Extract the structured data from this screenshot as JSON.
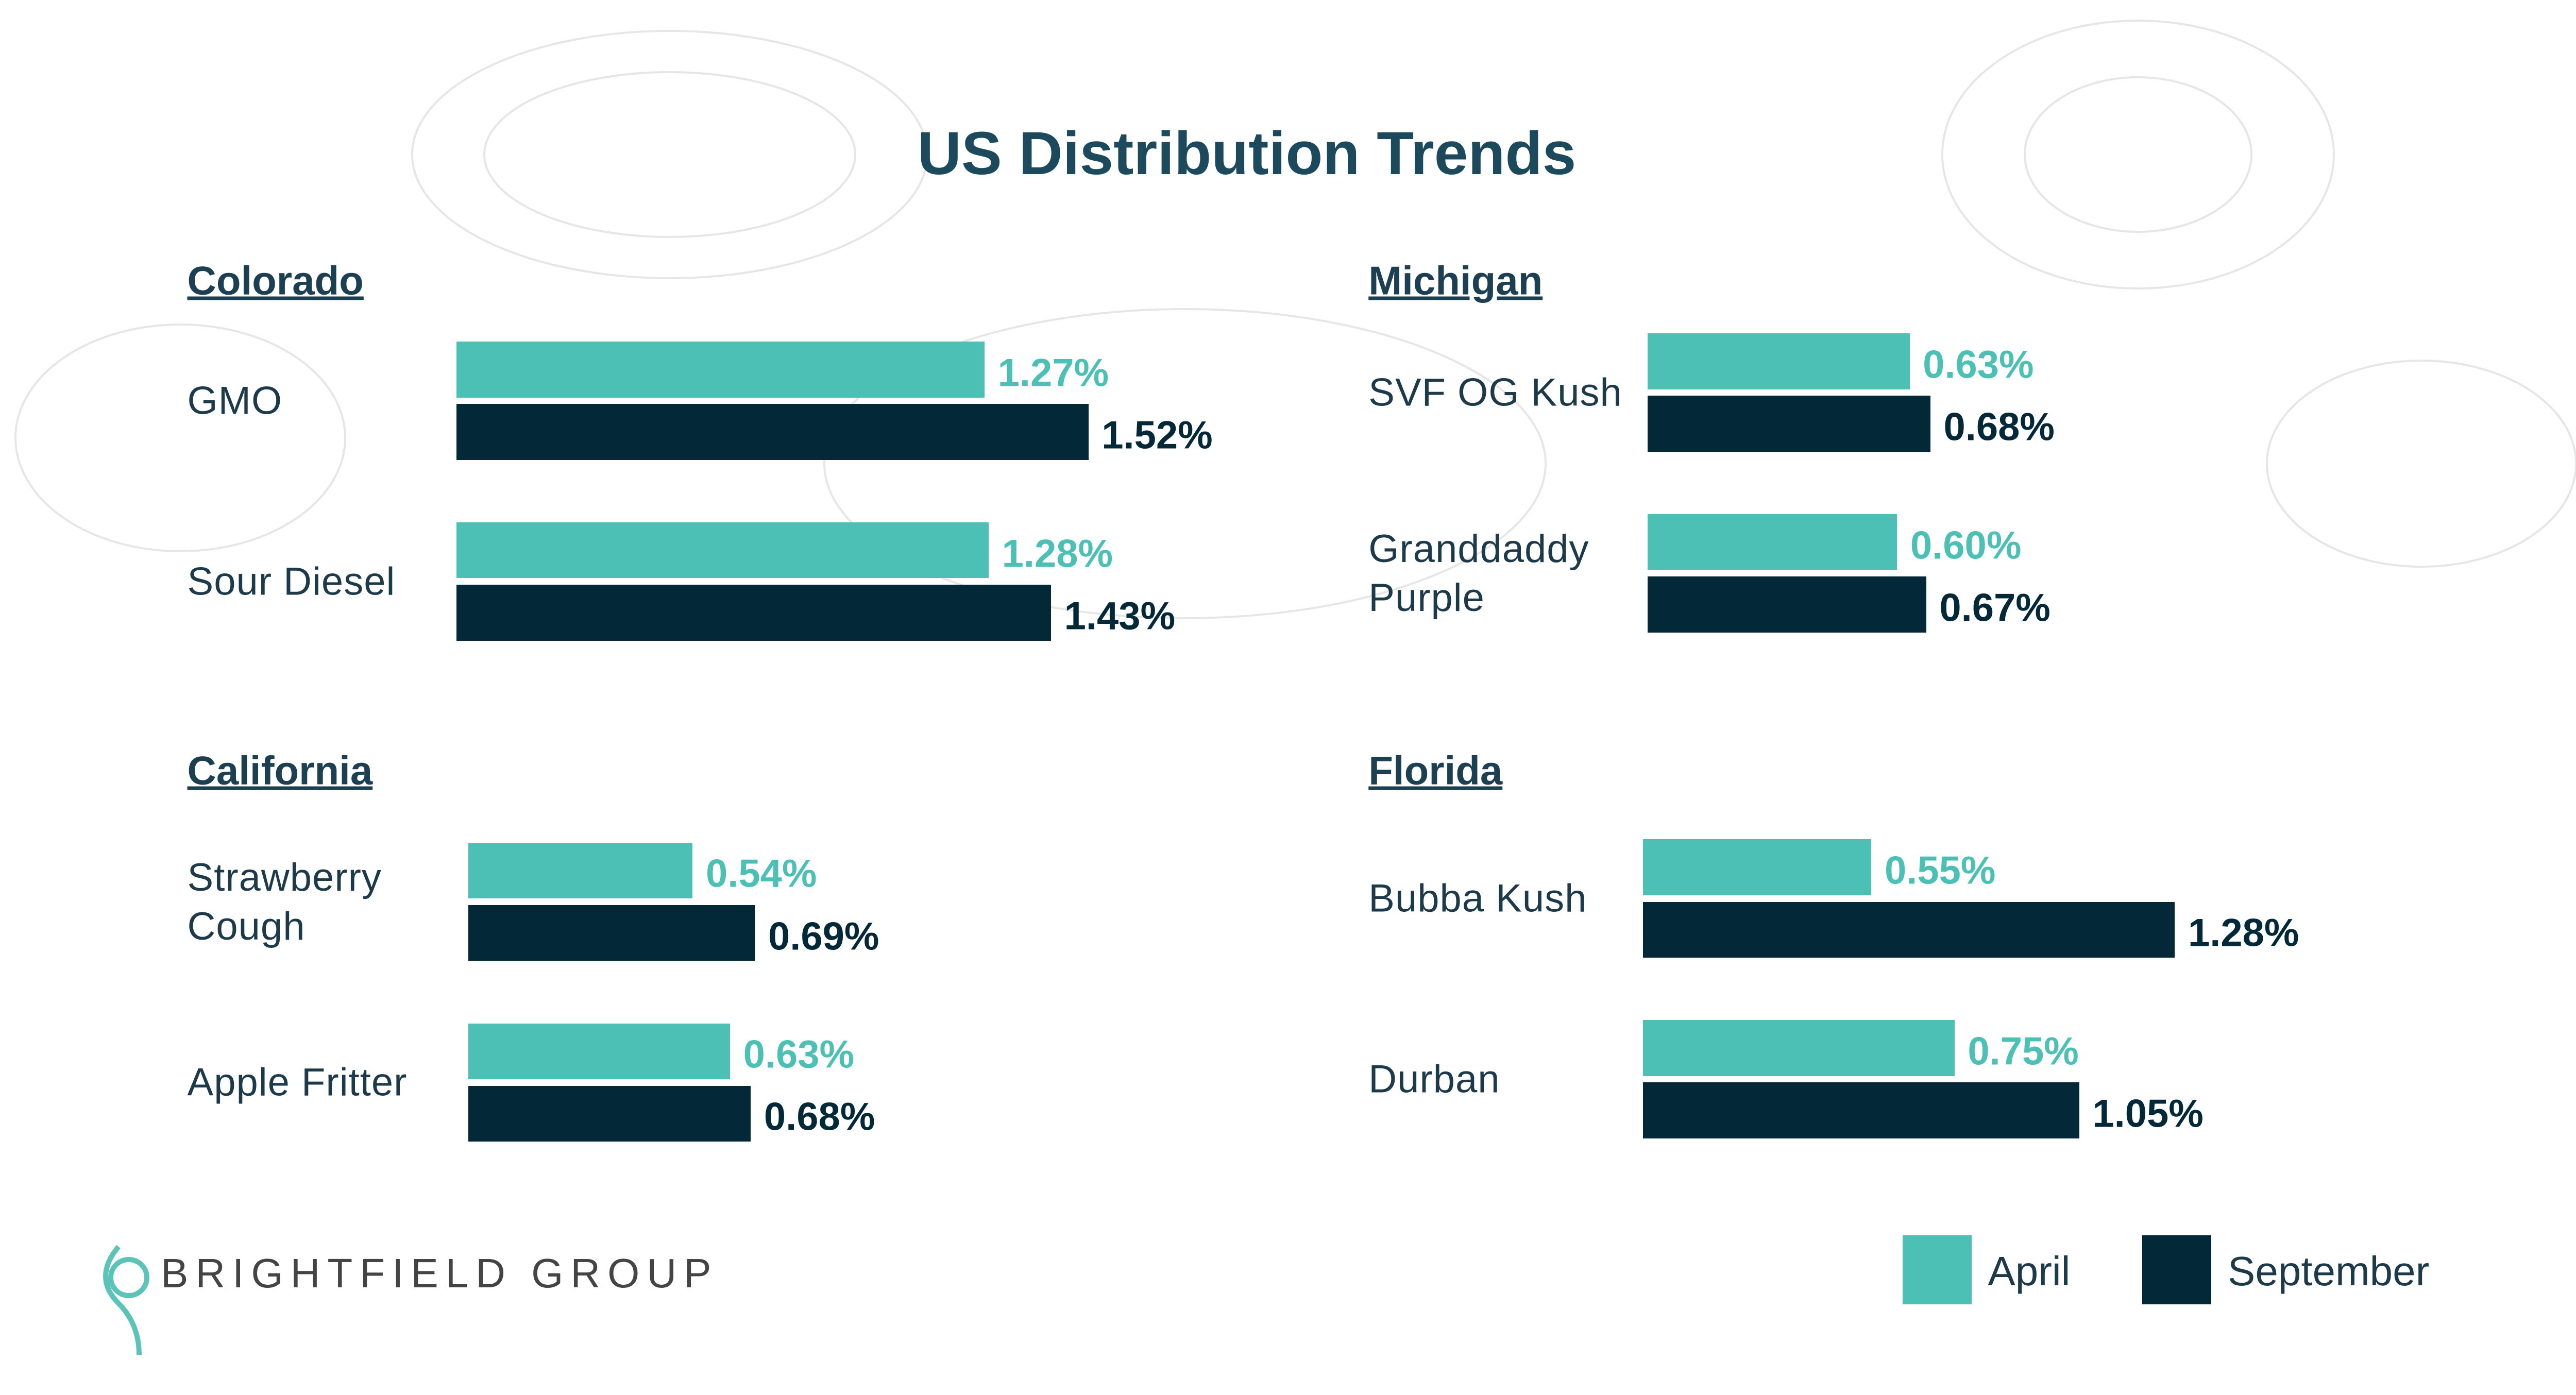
{
  "title": "US Distribution Trends",
  "logo": "BRIGHTFIELD GROUP",
  "chart_data": [
    {
      "type": "bar",
      "orientation": "horizontal",
      "title": "Colorado",
      "categories": [
        "GMO",
        "Sour Diesel"
      ],
      "series": [
        {
          "name": "April",
          "color": "#4cc0b4",
          "values": [
            1.27,
            1.28
          ],
          "value_labels": [
            "1.27%",
            "1.28%"
          ]
        },
        {
          "name": "September",
          "color": "#032838",
          "values": [
            1.52,
            1.43
          ],
          "value_labels": [
            "1.52%",
            "1.43%"
          ]
        }
      ]
    },
    {
      "type": "bar",
      "orientation": "horizontal",
      "title": "Michigan",
      "categories": [
        "SVF OG Kush",
        "Granddaddy Purple"
      ],
      "series": [
        {
          "name": "April",
          "color": "#4cc0b4",
          "values": [
            0.63,
            0.6
          ],
          "value_labels": [
            "0.63%",
            "0.60%"
          ]
        },
        {
          "name": "September",
          "color": "#032838",
          "values": [
            0.68,
            0.67
          ],
          "value_labels": [
            "0.68%",
            "0.67%"
          ]
        }
      ]
    },
    {
      "type": "bar",
      "orientation": "horizontal",
      "title": "California",
      "categories": [
        "Strawberry Cough",
        "Apple Fritter"
      ],
      "series": [
        {
          "name": "April",
          "color": "#4cc0b4",
          "values": [
            0.54,
            0.63
          ],
          "value_labels": [
            "0.54%",
            "0.63%"
          ]
        },
        {
          "name": "September",
          "color": "#032838",
          "values": [
            0.69,
            0.68
          ],
          "value_labels": [
            "0.69%",
            "0.68%"
          ]
        }
      ]
    },
    {
      "type": "bar",
      "orientation": "horizontal",
      "title": "Florida",
      "categories": [
        "Bubba Kush",
        "Durban"
      ],
      "series": [
        {
          "name": "April",
          "color": "#4cc0b4",
          "values": [
            0.55,
            0.75
          ],
          "value_labels": [
            "0.55%",
            "0.75%"
          ]
        },
        {
          "name": "September",
          "color": "#032838",
          "values": [
            1.28,
            1.05
          ],
          "value_labels": [
            "1.28%",
            "1.05%"
          ]
        }
      ]
    }
  ]
}
